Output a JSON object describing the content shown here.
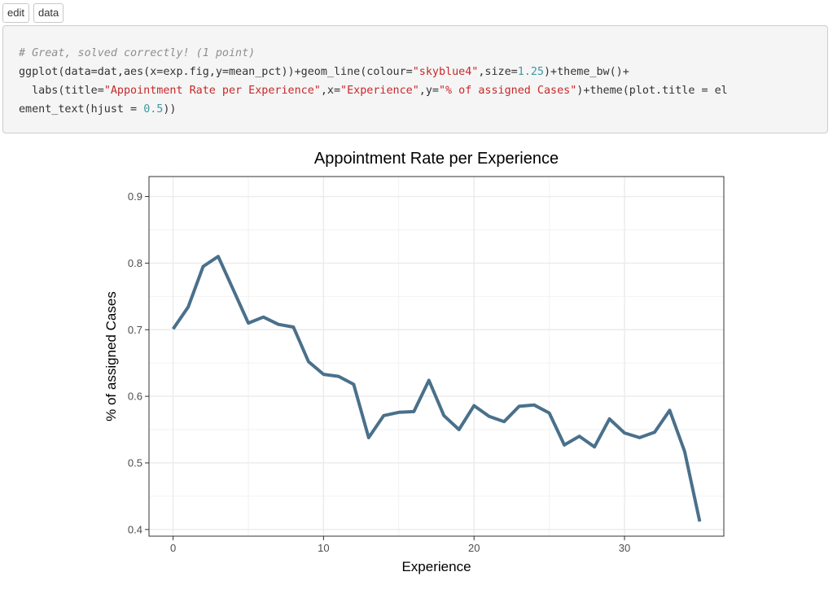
{
  "toolbar": {
    "edit_label": "edit",
    "data_label": "data"
  },
  "code": {
    "line1": "# Great, solved correctly! (1 point)",
    "line2_a": "ggplot(data=dat,aes(x=exp.fig,y=mean_pct))+geom_line(colour=",
    "line2_str": "\"skyblue4\"",
    "line2_b": ",size=",
    "line2_num": "1.25",
    "line2_c": ")+theme_bw()+",
    "line3_a": "  labs(title=",
    "line3_str1": "\"Appointment Rate per Experience\"",
    "line3_b": ",x=",
    "line3_str2": "\"Experience\"",
    "line3_c": ",y=",
    "line3_str3": "\"% of assigned Cases\"",
    "line3_d": ")+theme(plot.title = el",
    "line4_a": "ement_text(hjust = ",
    "line4_num": "0.5",
    "line4_b": "))"
  },
  "chart_data": {
    "type": "line",
    "title": "Appointment Rate per Experience",
    "xlabel": "Experience",
    "ylabel": "% of assigned Cases",
    "xlim": [
      -1.6,
      36.6
    ],
    "ylim": [
      0.39,
      0.93
    ],
    "xticks": [
      0,
      10,
      20,
      30
    ],
    "xtick_labels": [
      "0",
      "10",
      "20",
      "30"
    ],
    "yticks": [
      0.4,
      0.5,
      0.6,
      0.7,
      0.8,
      0.9
    ],
    "ytick_labels": [
      "0.4",
      "0.5",
      "0.6",
      "0.7",
      "0.8",
      "0.9"
    ],
    "grid": true,
    "line_color": "#4A708B",
    "series": [
      {
        "x": [
          0,
          1,
          2,
          3,
          4,
          5,
          6,
          7,
          8,
          9,
          10,
          11,
          12,
          13,
          14,
          15,
          16,
          17,
          18,
          19,
          20,
          21,
          22,
          23,
          24,
          25,
          26,
          27,
          28,
          29,
          30,
          31,
          32,
          33,
          34,
          35
        ],
        "values": [
          0.701,
          0.734,
          0.795,
          0.81,
          0.76,
          0.71,
          0.719,
          0.708,
          0.704,
          0.652,
          0.633,
          0.63,
          0.618,
          0.538,
          0.571,
          0.576,
          0.577,
          0.624,
          0.571,
          0.55,
          0.586,
          0.57,
          0.562,
          0.585,
          0.587,
          0.575,
          0.527,
          0.54,
          0.524,
          0.566,
          0.545,
          0.538,
          0.546,
          0.579,
          0.517,
          0.412
        ]
      }
    ]
  }
}
